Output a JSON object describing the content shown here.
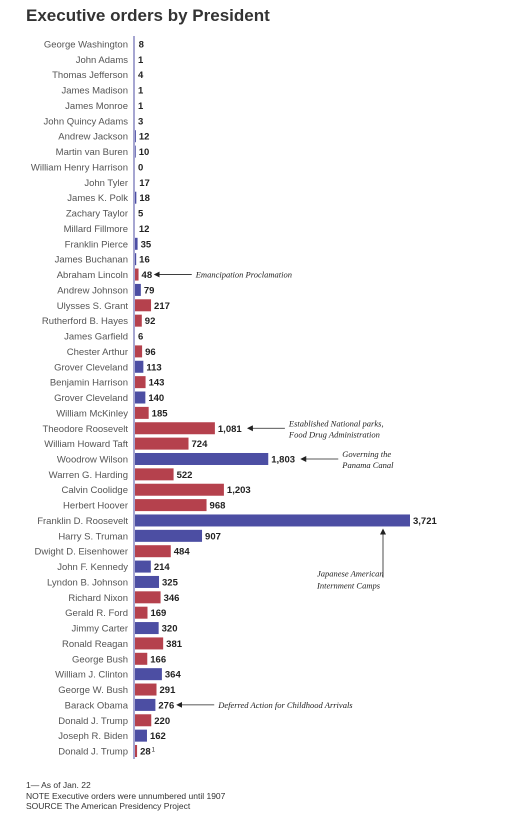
{
  "title": "Executive orders by President",
  "chart_data": {
    "type": "bar",
    "orientation": "horizontal",
    "title": "Executive orders by President",
    "xlabel": "",
    "ylabel": "",
    "xlim": [
      0,
      3721
    ],
    "grid": false,
    "colors": {
      "republican": "#b5414d",
      "democrat": "#4c4ea3",
      "axis": "#4c4ea3"
    },
    "categories": [
      "George Washington",
      "John Adams",
      "Thomas Jefferson",
      "James Madison",
      "James Monroe",
      "John Quincy Adams",
      "Andrew Jackson",
      "Martin van Buren",
      "William Henry Harrison",
      "John Tyler",
      "James K. Polk",
      "Zachary Taylor",
      "Millard Fillmore",
      "Franklin Pierce",
      "James Buchanan",
      "Abraham Lincoln",
      "Andrew Johnson",
      "Ulysses S. Grant",
      "Rutherford B. Hayes",
      "James Garfield",
      "Chester Arthur",
      "Grover Cleveland",
      "Benjamin Harrison",
      "Grover Cleveland",
      "William McKinley",
      "Theodore Roosevelt",
      "William Howard Taft",
      "Woodrow Wilson",
      "Warren G. Harding",
      "Calvin Coolidge",
      "Herbert Hoover",
      "Franklin D. Roosevelt",
      "Harry S. Truman",
      "Dwight D. Eisenhower",
      "John F. Kennedy",
      "Lyndon B. Johnson",
      "Richard Nixon",
      "Gerald R. Ford",
      "Jimmy Carter",
      "Ronald Reagan",
      "George Bush",
      "William J. Clinton",
      "George W. Bush",
      "Barack Obama",
      "Donald J. Trump",
      "Joseph R. Biden",
      "Donald J. Trump"
    ],
    "values": [
      8,
      1,
      4,
      1,
      1,
      3,
      12,
      10,
      0,
      17,
      18,
      5,
      12,
      35,
      16,
      48,
      79,
      217,
      92,
      6,
      96,
      113,
      143,
      140,
      185,
      1081,
      724,
      1803,
      522,
      1203,
      968,
      3721,
      907,
      484,
      214,
      325,
      346,
      169,
      320,
      381,
      166,
      364,
      291,
      276,
      220,
      162,
      28
    ],
    "value_labels": [
      "8",
      "1",
      "4",
      "1",
      "1",
      "3",
      "12",
      "10",
      "0",
      "17",
      "18",
      "5",
      "12",
      "35",
      "16",
      "48",
      "79",
      "217",
      "92",
      "6",
      "96",
      "113",
      "143",
      "140",
      "185",
      "1,081",
      "724",
      "1,803",
      "522",
      "1,203",
      "968",
      "3,721",
      "907",
      "484",
      "214",
      "325",
      "346",
      "169",
      "320",
      "381",
      "166",
      "364",
      "291",
      "276",
      "220",
      "162",
      "28"
    ],
    "value_superscripts": {
      "46": "1"
    },
    "party": [
      "N",
      "N",
      "N",
      "N",
      "N",
      "N",
      "D",
      "D",
      "N",
      "N",
      "D",
      "N",
      "N",
      "D",
      "D",
      "R",
      "D",
      "R",
      "R",
      "R",
      "R",
      "D",
      "R",
      "D",
      "R",
      "R",
      "R",
      "D",
      "R",
      "R",
      "R",
      "D",
      "D",
      "R",
      "D",
      "D",
      "R",
      "R",
      "D",
      "R",
      "R",
      "D",
      "R",
      "D",
      "R",
      "D",
      "R"
    ],
    "annotations": [
      {
        "index": 15,
        "lines": [
          "Emancipation Proclamation"
        ]
      },
      {
        "index": 25,
        "lines": [
          "Established National parks,",
          "Food Drug Administration"
        ]
      },
      {
        "index": 27,
        "lines": [
          "Governing the",
          "Panama Canal"
        ]
      },
      {
        "index": 31,
        "lines": [
          "Japanese American",
          "Internment Camps"
        ]
      },
      {
        "index": 43,
        "lines": [
          "Deferred Action for Childhood Arrivals"
        ]
      }
    ]
  },
  "notes": [
    "1— As of Jan. 22",
    "NOTE Executive orders were unnumbered until 1907",
    "SOURCE The American Presidency Project"
  ]
}
